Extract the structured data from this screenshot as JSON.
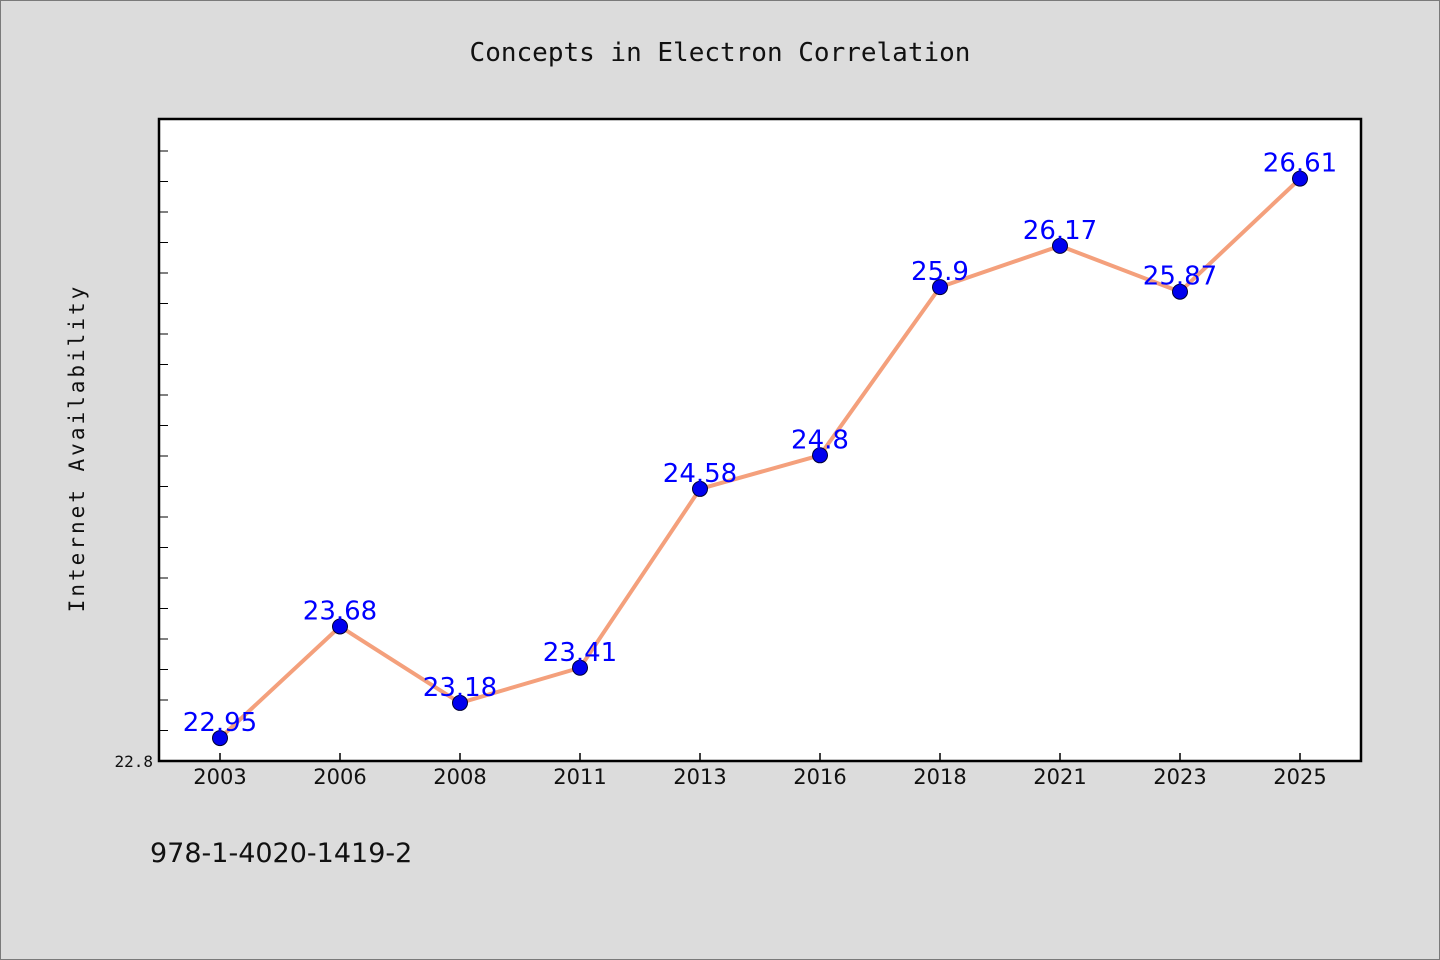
{
  "chart_data": {
    "type": "line",
    "title": "Concepts in Electron Correlation",
    "xlabel": "",
    "ylabel": "Internet Availability",
    "categories": [
      "2003",
      "2006",
      "2008",
      "2011",
      "2013",
      "2016",
      "2018",
      "2021",
      "2023",
      "2025"
    ],
    "series": [
      {
        "values": [
          22.95,
          23.68,
          23.18,
          23.41,
          24.58,
          24.8,
          25.9,
          26.17,
          25.87,
          26.61
        ],
        "labels": [
          "22.95",
          "23.68",
          "23.18",
          "23.41",
          "24.58",
          "24.8",
          "25.9",
          "26.17",
          "25.87",
          "26.61"
        ],
        "line_color": "#f4a07c",
        "marker_color": "#0000ee"
      }
    ],
    "ylim": [
      22.8,
      27.0
    ],
    "y_tick_labels": [
      "22.8"
    ],
    "grid": false,
    "legend": "none"
  },
  "footer": {
    "text": "978-1-4020-1419-2"
  }
}
